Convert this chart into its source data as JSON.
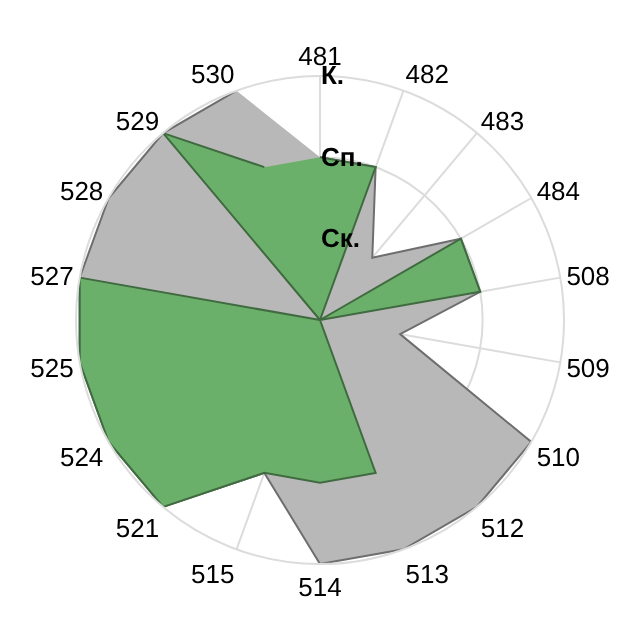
{
  "chart_data": {
    "type": "radar",
    "categories": [
      "481",
      "482",
      "483",
      "484",
      "508",
      "509",
      "510",
      "512",
      "513",
      "514",
      "515",
      "521",
      "524",
      "525",
      "527",
      "528",
      "529",
      "530"
    ],
    "series": [
      {
        "color": "#b8b8b8",
        "values": [
          2,
          2,
          1,
          2,
          2,
          1,
          3,
          3,
          3,
          3,
          2,
          3,
          3,
          3,
          3,
          3,
          3,
          3
        ]
      },
      {
        "color": "#6ab06a",
        "values": [
          2,
          2,
          0,
          2,
          2,
          0,
          0,
          0,
          2,
          2,
          2,
          3,
          3,
          3,
          3,
          0,
          3,
          2
        ]
      }
    ],
    "ylim": [
      0,
      3
    ],
    "yticks": [
      {
        "value": 1,
        "label": "Ск."
      },
      {
        "value": 2,
        "label": "Сп."
      },
      {
        "value": 3,
        "label": "К."
      }
    ],
    "grid": true
  }
}
